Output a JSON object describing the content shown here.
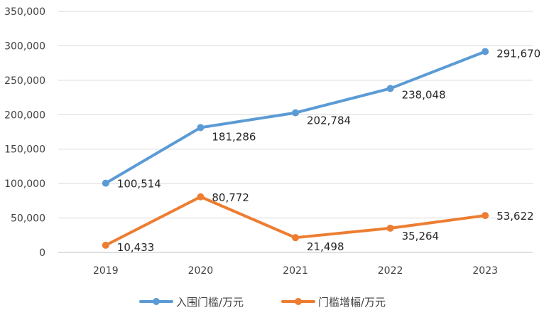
{
  "chart_data": {
    "type": "line",
    "title": "",
    "xlabel": "",
    "ylabel": "",
    "categories": [
      "2019",
      "2020",
      "2021",
      "2022",
      "2023"
    ],
    "ylim": [
      0,
      350000
    ],
    "yticks": [
      0,
      50000,
      100000,
      150000,
      200000,
      250000,
      300000,
      350000
    ],
    "ytick_labels": [
      "0",
      "50,000",
      "100,000",
      "150,000",
      "200,000",
      "250,000",
      "300,000",
      "350,000"
    ],
    "grid": "horizontal",
    "legend": "bottom",
    "series": [
      {
        "name": "入围门槛/万元",
        "color": "#5B9BD5",
        "values": [
          100514,
          181286,
          202784,
          238048,
          291670
        ],
        "labels": [
          "100,514",
          "181,286",
          "202,784",
          "238,048",
          "291,670"
        ]
      },
      {
        "name": "门槛增幅/万元",
        "color": "#ED7D31",
        "values": [
          10433,
          80772,
          21498,
          35264,
          53622
        ],
        "labels": [
          "10,433",
          "80,772",
          "21,498",
          "35,264",
          "53,622"
        ]
      }
    ]
  }
}
